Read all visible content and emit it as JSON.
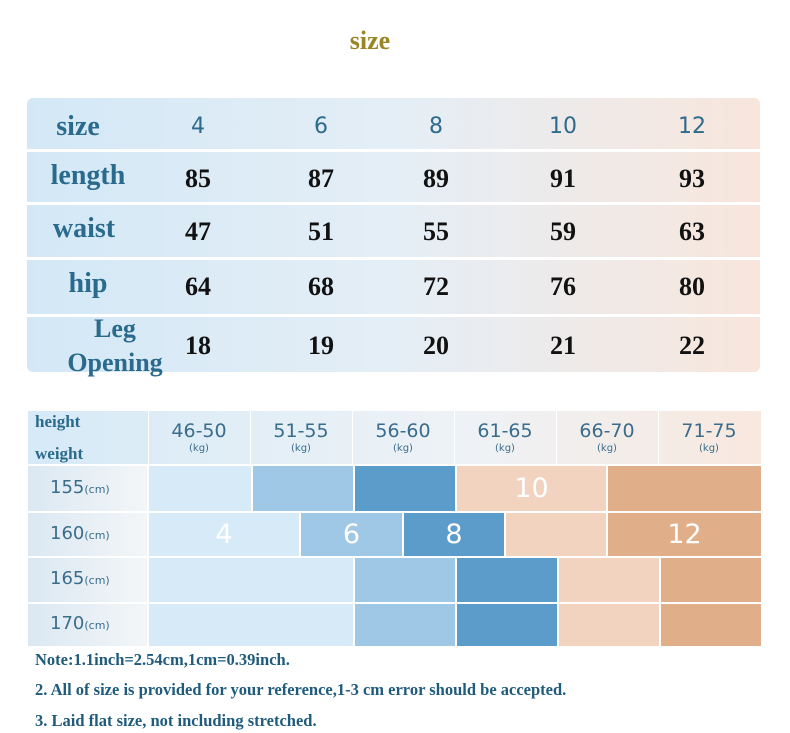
{
  "title": "size",
  "size_table": {
    "header": [
      "size",
      "4",
      "6",
      "8",
      "10",
      "12"
    ],
    "rows": [
      [
        "length",
        85,
        87,
        89,
        91,
        93
      ],
      [
        "waist",
        47,
        51,
        55,
        59,
        63
      ],
      [
        "hip",
        64,
        68,
        72,
        76,
        80
      ],
      [
        "Leg Opening",
        18,
        19,
        20,
        21,
        22
      ]
    ]
  },
  "size_grid": {
    "corner_top": "height",
    "corner_bottom": "weight",
    "columns": [
      {
        "range": "46-50",
        "unit": "(kg)"
      },
      {
        "range": "51-55",
        "unit": "(kg)"
      },
      {
        "range": "56-60",
        "unit": "(kg)"
      },
      {
        "range": "61-65",
        "unit": "(kg)"
      },
      {
        "range": "66-70",
        "unit": "(kg)"
      },
      {
        "range": "71-75",
        "unit": "(kg)"
      }
    ],
    "rows": [
      {
        "height": "155",
        "unit": "(cm)"
      },
      {
        "height": "160",
        "unit": "(cm)"
      },
      {
        "height": "165",
        "unit": "(cm)"
      },
      {
        "height": "170",
        "unit": "(cm)"
      }
    ],
    "size_labels": [
      "10",
      "4",
      "6",
      "8",
      "12"
    ]
  },
  "notes": [
    "Note:1.1inch=2.54cm,1cm=0.39inch.",
    "2. All of size is provided for your reference,1-3 cm error should be accepted.",
    "3. Laid flat size, not including stretched."
  ]
}
